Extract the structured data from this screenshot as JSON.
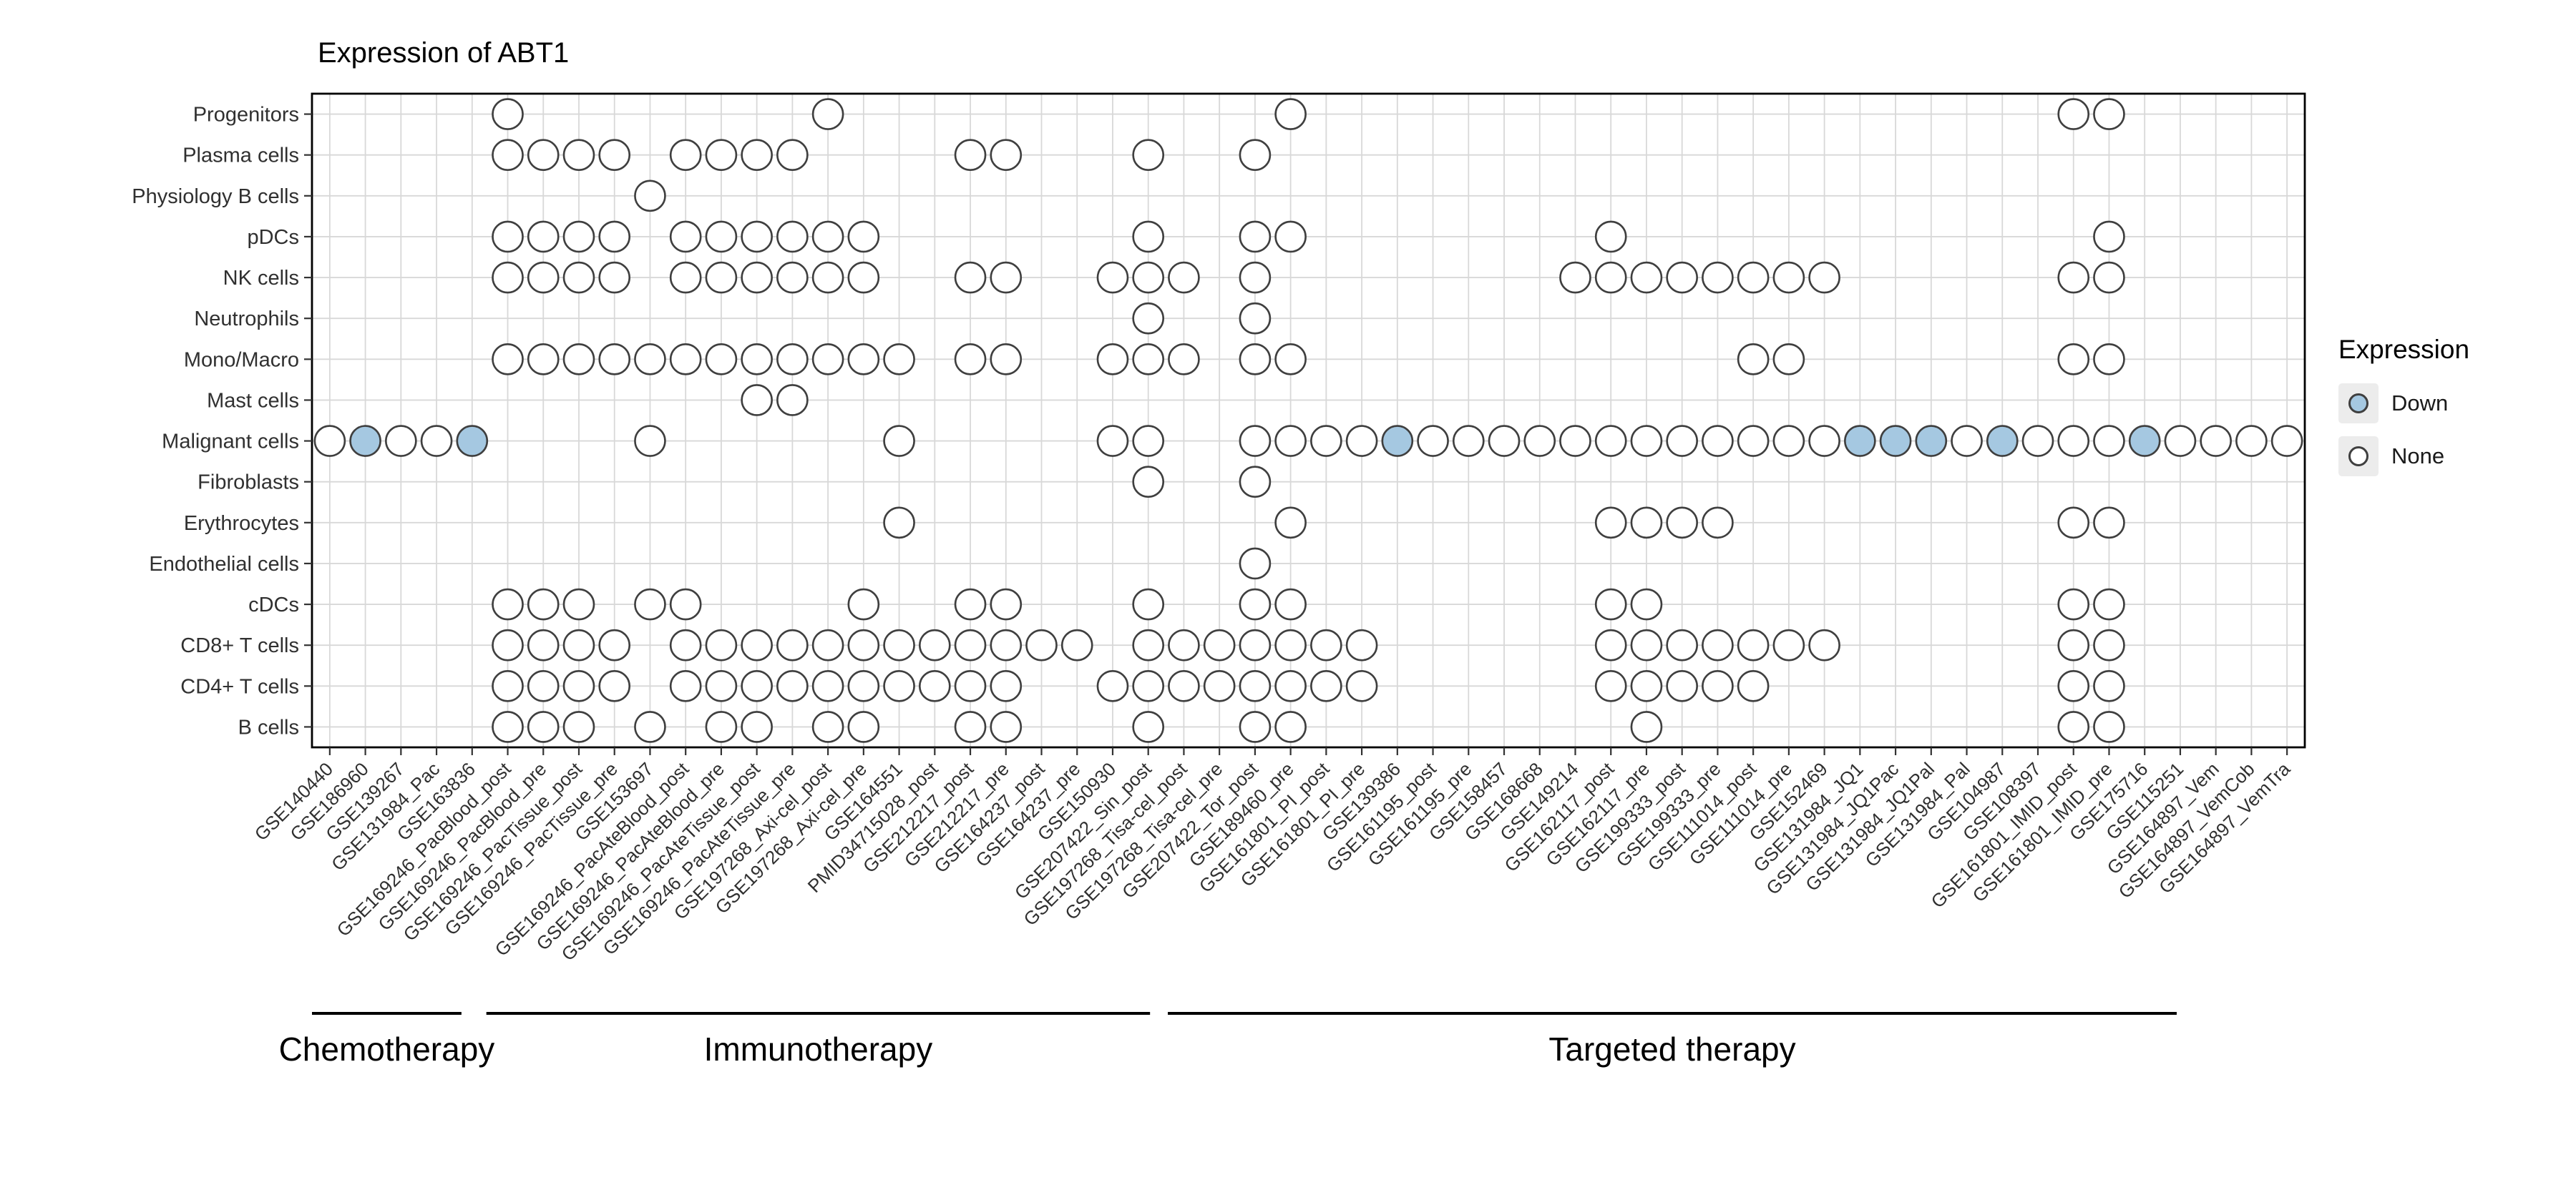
{
  "title": "Expression of ABT1",
  "legend": {
    "title": "Expression",
    "items": [
      {
        "label": "Down",
        "value": "down"
      },
      {
        "label": "None",
        "value": "none"
      }
    ],
    "position": "right"
  },
  "colors": {
    "down_fill": "#a5c8e1",
    "none_fill": "#ffffff",
    "circle_stroke": "#3f3f3f",
    "grid": "#d8d8d8",
    "panel_border": "#000000",
    "axis_text": "#303030"
  },
  "groups": [
    {
      "label": "Chemotherapy",
      "columns_range": [
        1,
        5
      ],
      "span": [
        0.0,
        4.2
      ]
    },
    {
      "label": "Immunotherapy",
      "columns_range": [
        6,
        24
      ],
      "span": [
        4.9,
        23.55
      ]
    },
    {
      "label": "Targeted therapy",
      "columns_range": [
        24,
        53
      ],
      "span": [
        24.05,
        52.4
      ]
    }
  ],
  "chart_data": {
    "type": "heatmap",
    "subtype": "dot-matrix",
    "marker": "circle",
    "title": "Expression of ABT1",
    "grid": true,
    "legend_position": "right",
    "rows": [
      "Progenitors",
      "Plasma cells",
      "Physiology B cells",
      "pDCs",
      "NK cells",
      "Neutrophils",
      "Mono/Macro",
      "Mast cells",
      "Malignant cells",
      "Fibroblasts",
      "Erythrocytes",
      "Endothelial cells",
      "cDCs",
      "CD8+ T cells",
      "CD4+ T cells",
      "B cells"
    ],
    "columns": [
      "GSE140440",
      "GSE186960",
      "GSE139267",
      "GSE131984_Pac",
      "GSE163836",
      "GSE169246_PacBlood_post",
      "GSE169246_PacBlood_pre",
      "GSE169246_PacTissue_post",
      "GSE169246_PacTissue_pre",
      "GSE153697",
      "GSE169246_PacAteBlood_post",
      "GSE169246_PacAteBlood_pre",
      "GSE169246_PacAteTissue_post",
      "GSE169246_PacAteTissue_pre",
      "GSE197268_Axi-cel_post",
      "GSE197268_Axi-cel_pre",
      "GSE164551",
      "PMID34715028_post",
      "GSE212217_post",
      "GSE212217_pre",
      "GSE164237_post",
      "GSE164237_pre",
      "GSE150930",
      "GSE207422_Sin_post",
      "GSE197268_Tisa-cel_post",
      "GSE197268_Tisa-cel_pre",
      "GSE207422_Tor_post",
      "GSE189460_pre",
      "GSE161801_PI_post",
      "GSE161801_PI_pre",
      "GSE139386",
      "GSE161195_post",
      "GSE161195_pre",
      "GSE158457",
      "GSE168668",
      "GSE149214",
      "GSE162117_post",
      "GSE162117_pre",
      "GSE199333_post",
      "GSE199333_pre",
      "GSE111014_post",
      "GSE111014_pre",
      "GSE152469",
      "GSE131984_JQ1",
      "GSE131984_JQ1Pac",
      "GSE131984_JQ1Pal",
      "GSE131984_Pal",
      "GSE104987",
      "GSE108397",
      "GSE161801_IMID_post",
      "GSE161801_IMID_pre",
      "GSE175716",
      "GSE115251",
      "GSE164897_Vem",
      "GSE164897_VemCob",
      "GSE164897_VemTra"
    ],
    "cells": {
      "Progenitors": [
        6,
        15,
        28,
        50,
        51
      ],
      "Plasma cells": [
        6,
        7,
        8,
        9,
        11,
        12,
        13,
        14,
        19,
        20,
        24,
        27
      ],
      "Physiology B cells": [
        10
      ],
      "pDCs": [
        6,
        7,
        8,
        9,
        11,
        12,
        13,
        14,
        15,
        16,
        24,
        27,
        28,
        37,
        51
      ],
      "NK cells": [
        6,
        7,
        8,
        9,
        11,
        12,
        13,
        14,
        15,
        16,
        19,
        20,
        23,
        24,
        25,
        27,
        36,
        37,
        38,
        39,
        40,
        41,
        42,
        43,
        50,
        51
      ],
      "Neutrophils": [
        24,
        27
      ],
      "Mono/Macro": [
        6,
        7,
        8,
        9,
        10,
        11,
        12,
        13,
        14,
        15,
        16,
        17,
        19,
        20,
        23,
        24,
        25,
        27,
        28,
        41,
        42,
        50,
        51
      ],
      "Mast cells": [
        13,
        14
      ],
      "Malignant cells": [
        1,
        2,
        3,
        4,
        5,
        10,
        17,
        23,
        24,
        27,
        28,
        29,
        30,
        31,
        32,
        33,
        34,
        35,
        36,
        37,
        38,
        39,
        40,
        41,
        42,
        43,
        44,
        45,
        46,
        47,
        48,
        49,
        50,
        51,
        52,
        53,
        54,
        55,
        56
      ],
      "Fibroblasts": [
        24,
        27
      ],
      "Erythrocytes": [
        17,
        28,
        37,
        38,
        39,
        40,
        50,
        51
      ],
      "Endothelial cells": [
        27
      ],
      "cDCs": [
        6,
        7,
        8,
        10,
        11,
        16,
        19,
        20,
        24,
        27,
        28,
        37,
        38,
        50,
        51
      ],
      "CD8+ T cells": [
        6,
        7,
        8,
        9,
        11,
        12,
        13,
        14,
        15,
        16,
        17,
        18,
        19,
        20,
        21,
        22,
        24,
        25,
        26,
        27,
        28,
        29,
        30,
        37,
        38,
        39,
        40,
        41,
        42,
        43,
        50,
        51
      ],
      "CD4+ T cells": [
        6,
        7,
        8,
        9,
        11,
        12,
        13,
        14,
        15,
        16,
        17,
        18,
        19,
        20,
        23,
        24,
        25,
        26,
        27,
        28,
        29,
        30,
        37,
        38,
        39,
        40,
        41,
        50,
        51
      ],
      "B cells": [
        6,
        7,
        8,
        10,
        12,
        13,
        15,
        16,
        19,
        20,
        24,
        27,
        28,
        38,
        50,
        51
      ]
    },
    "down": {
      "Malignant cells": [
        2,
        5,
        31,
        44,
        45,
        46,
        48,
        52
      ]
    }
  }
}
